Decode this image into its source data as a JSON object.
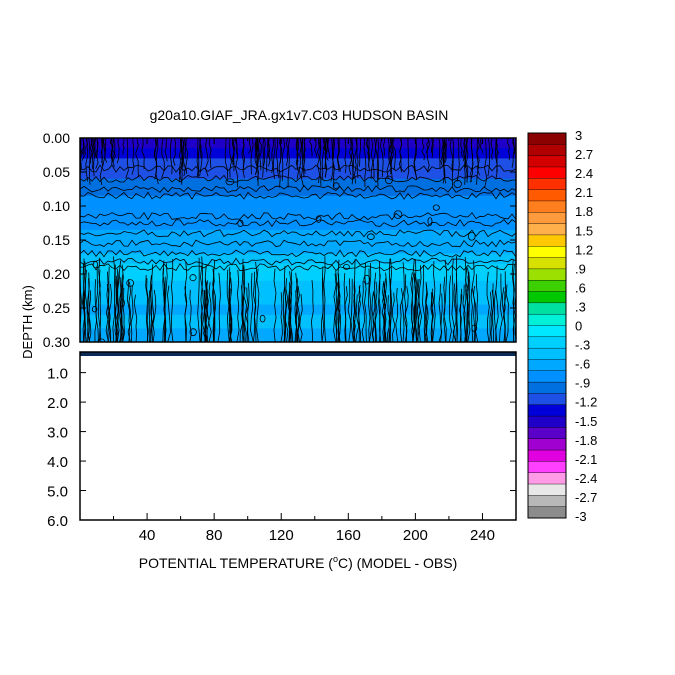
{
  "chart_data": {
    "type": "heatmap",
    "title": "g20a10.GIAF_JRA.gx1v7.C03 HUDSON BASIN",
    "xlabel_parts": [
      "POTENTIAL TEMPERATURE (",
      "o",
      "C) (MODEL - OBS)"
    ],
    "ylabel": "DEPTH (km)",
    "xlim": [
      0,
      260
    ],
    "x_ticks": [
      40,
      80,
      120,
      160,
      200,
      240
    ],
    "upper_panel": {
      "ylim": [
        0.0,
        0.3
      ],
      "y_ticks": [
        "0.00",
        "0.05",
        "0.10",
        "0.15",
        "0.20",
        "0.25",
        "0.30"
      ],
      "y_tick_values": [
        0.0,
        0.05,
        0.1,
        0.15,
        0.2,
        0.25,
        0.3
      ]
    },
    "lower_panel": {
      "ylim": [
        0.3,
        6.0
      ],
      "y_ticks": [
        "1.0",
        "2.0",
        "3.0",
        "4.0",
        "5.0",
        "6.0"
      ],
      "y_tick_values": [
        1.0,
        2.0,
        3.0,
        4.0,
        5.0,
        6.0
      ]
    },
    "depth_profile": {
      "depth": [
        0.0,
        0.02,
        0.05,
        0.07,
        0.09,
        0.11,
        0.13,
        0.15,
        0.17,
        0.185,
        0.2,
        0.22,
        0.25,
        0.27,
        0.3
      ],
      "anomaly": [
        -1.6,
        -1.3,
        -1.1,
        -1.0,
        -0.85,
        -0.8,
        -0.75,
        -0.6,
        -0.55,
        -0.35,
        -0.3,
        -0.4,
        -0.55,
        -0.5,
        -0.6
      ]
    },
    "colorbar": {
      "labels": [
        "3",
        "2.7",
        "2.4",
        "2.1",
        "1.8",
        "1.5",
        "1.2",
        ".9",
        ".6",
        ".3",
        "0",
        "-.3",
        "-.6",
        "-.9",
        "-1.2",
        "-1.5",
        "-1.8",
        "-2.1",
        "-2.4",
        "-2.7",
        "-3"
      ],
      "colors": [
        "#8b0000",
        "#b00000",
        "#d40000",
        "#ff0000",
        "#ff3000",
        "#ff5a00",
        "#ff7f1e",
        "#ff9b3c",
        "#ffb04a",
        "#ffc800",
        "#ffff00",
        "#d8e000",
        "#9be000",
        "#3cd000",
        "#00c800",
        "#00e0a0",
        "#00f0d8",
        "#00e8ff",
        "#00d0ff",
        "#00c0ff",
        "#00a8ff",
        "#0090ff",
        "#0070e0",
        "#1e50e6",
        "#0000d8",
        "#1e00c8",
        "#5a00c8",
        "#a000d0",
        "#e000e0",
        "#ff40ff",
        "#ff9be6",
        "#e8e8e8",
        "#b8b8b8",
        "#8c8c8c"
      ]
    }
  }
}
